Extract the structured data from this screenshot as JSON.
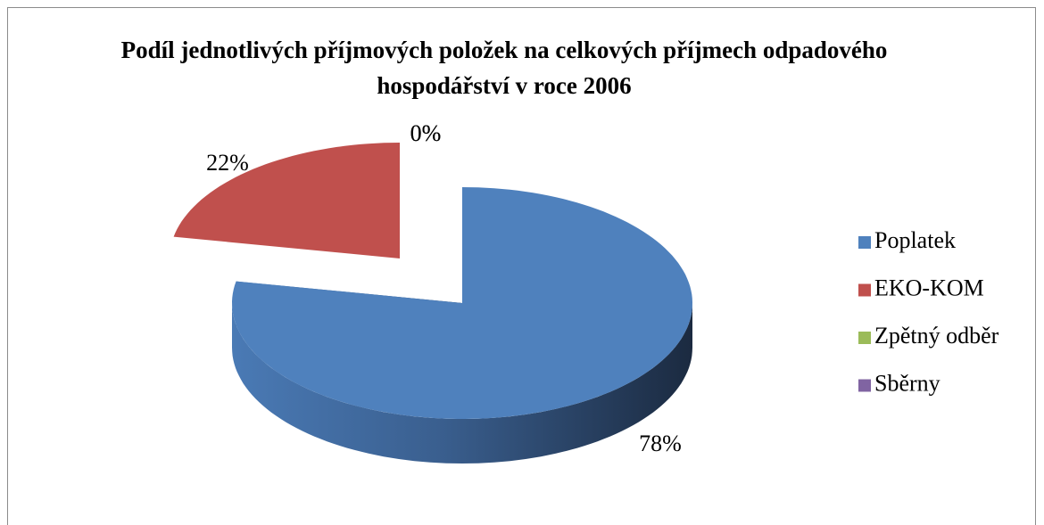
{
  "chart_data": {
    "type": "pie",
    "title": "Podíl jednotlivých příjmových položek na celkových příjmech odpadového hospodářství v roce 2006",
    "categories": [
      "Poplatek",
      "EKO-KOM",
      "Zpětný odběr",
      "Sběrny"
    ],
    "values": [
      78,
      22,
      0,
      0
    ],
    "value_labels": [
      "78%",
      "22%",
      "0%",
      "0%"
    ],
    "colors": [
      "#4f81bd",
      "#c0504d",
      "#9bbb59",
      "#8064a2"
    ],
    "legend": "right"
  }
}
